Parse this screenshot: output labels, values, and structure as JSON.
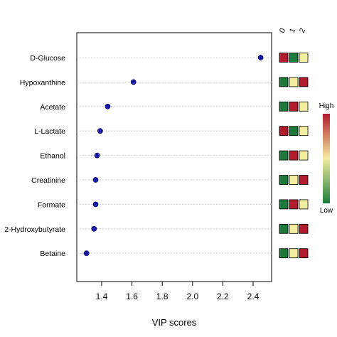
{
  "chart_data": {
    "type": "scatter",
    "title": "",
    "xlabel": "VIP scores",
    "ylabel": "",
    "xlim": [
      1.25,
      2.5
    ],
    "xticks": [
      1.4,
      1.6,
      1.8,
      2.0,
      2.2,
      2.4
    ],
    "xtick_labels": [
      "1.4",
      "1.6",
      "1.8",
      "2.0",
      "2.2",
      "2.4"
    ],
    "grid": "horizontal dotted",
    "point_color": "#1a1aa6",
    "metabolites": [
      "D-Glucose",
      "Hypoxanthine",
      "Acetate",
      "L-Lactate",
      "Ethanol",
      "Creatinine",
      "Formate",
      "2-Hydroxybutyrate",
      "Betaine"
    ],
    "vip_scores": [
      2.45,
      1.61,
      1.44,
      1.39,
      1.37,
      1.36,
      1.36,
      1.35,
      1.3
    ],
    "heatmap": {
      "columns": [
        "0",
        "1",
        "2"
      ],
      "levels": [
        [
          "high",
          "low",
          "mid"
        ],
        [
          "low",
          "mid",
          "high"
        ],
        [
          "low",
          "high",
          "mid"
        ],
        [
          "high",
          "low",
          "mid"
        ],
        [
          "low",
          "high",
          "mid"
        ],
        [
          "low",
          "mid",
          "high"
        ],
        [
          "low",
          "high",
          "mid"
        ],
        [
          "low",
          "mid",
          "high"
        ],
        [
          "low",
          "mid",
          "high"
        ]
      ],
      "colors": {
        "high": "#b01c2e",
        "mid": "#f3eda0",
        "low": "#1e7a3c"
      }
    },
    "legend": {
      "high_label": "High",
      "low_label": "Low",
      "gradient": [
        "#b01c2e",
        "#f3eda0",
        "#1e7a3c"
      ],
      "placement": "right"
    }
  }
}
